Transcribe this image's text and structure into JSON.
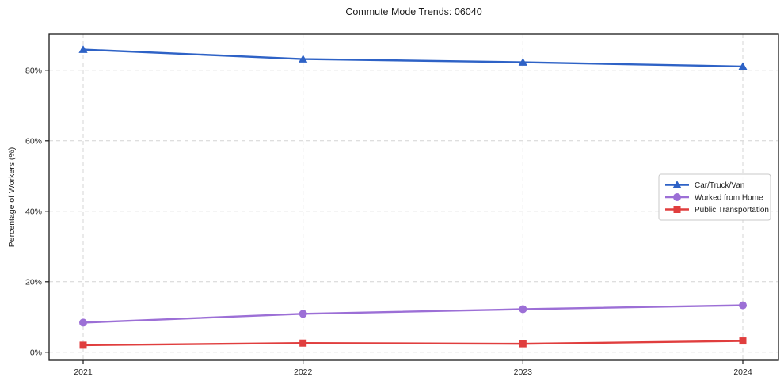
{
  "title": "Commute Mode Trends: 06040",
  "chart_data": {
    "type": "line",
    "title": "Commute Mode Trends: 06040",
    "xlabel": "",
    "ylabel": "Percentage of Workers (%)",
    "x": [
      "2021",
      "2022",
      "2023",
      "2024"
    ],
    "yticks": [
      0,
      20,
      40,
      60,
      80
    ],
    "ytick_labels": [
      "0%",
      "20%",
      "40%",
      "60%",
      "80%"
    ],
    "ylim": [
      -2.3,
      90.5
    ],
    "grid": true,
    "grid_style": "dashed",
    "legend_position": "center-right",
    "series": [
      {
        "name": "Car/Truck/Van",
        "marker": "triangle",
        "color": "#2e62c6",
        "values": [
          85.9,
          83.2,
          82.3,
          81.1
        ]
      },
      {
        "name": "Worked from Home",
        "marker": "circle",
        "color": "#9c6fd6",
        "values": [
          8.4,
          10.9,
          12.2,
          13.3
        ]
      },
      {
        "name": "Public Transportation",
        "marker": "square",
        "color": "#e03e3e",
        "values": [
          2.0,
          2.6,
          2.4,
          3.2
        ]
      }
    ],
    "colors": {
      "grid": "#d4d4d4",
      "axis": "#1a1a1a",
      "tick_label": "#262626",
      "legend_border": "#c8c8c8",
      "background": "#ffffff"
    }
  }
}
